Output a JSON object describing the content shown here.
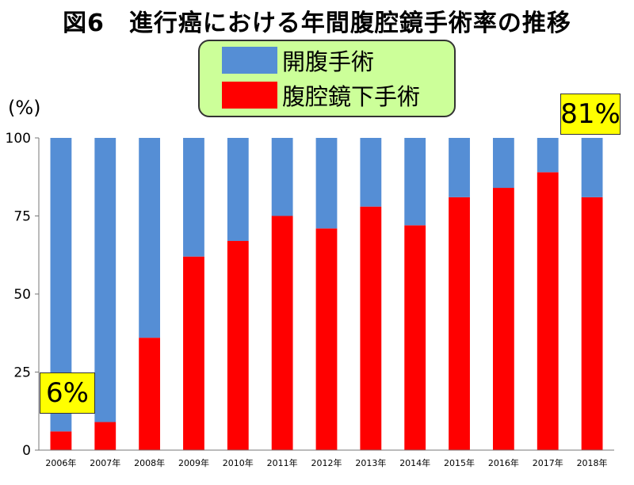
{
  "title": "図6　進行癌における年間腹腔鏡手術率の推移",
  "unit_label": "(%)",
  "legend": [
    {
      "label": "開腹手術",
      "color": "#558ed5"
    },
    {
      "label": "腹腔鏡下手術",
      "color": "#ff0000"
    }
  ],
  "callouts": {
    "left": "6%",
    "right": "81%"
  },
  "chart_data": {
    "type": "bar",
    "stacked": true,
    "categories": [
      "2006年",
      "2007年",
      "2008年",
      "2009年",
      "2010年",
      "2011年",
      "2012年",
      "2013年",
      "2014年",
      "2015年",
      "2016年",
      "2017年",
      "2018年"
    ],
    "series": [
      {
        "name": "腹腔鏡下手術",
        "color": "#ff0000",
        "values": [
          6,
          9,
          36,
          62,
          67,
          75,
          71,
          78,
          72,
          81,
          84,
          89,
          81
        ]
      },
      {
        "name": "開腹手術",
        "color": "#558ed5",
        "values": [
          94,
          91,
          64,
          38,
          33,
          25,
          29,
          22,
          28,
          19,
          16,
          11,
          19
        ]
      }
    ],
    "yticks": [
      0,
      25,
      50,
      75,
      100
    ],
    "ylim": [
      0,
      100
    ],
    "grid": false,
    "legend_position": "top-center"
  }
}
